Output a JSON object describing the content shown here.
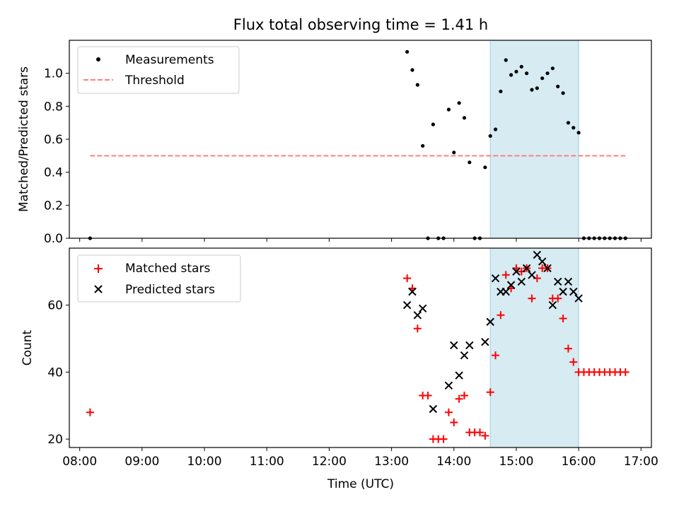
{
  "figure": {
    "title": "Flux total observing time = 1.41 h",
    "xlabel": "Time (UTC)"
  },
  "colors": {
    "highlight": "#add8e6",
    "threshold": "#ff7f7f",
    "measurement": "#000000",
    "matched": "#ff0000",
    "predicted": "#000000"
  },
  "chart_data": [
    {
      "type": "scatter",
      "title": "Flux total observing time = 1.41 h",
      "ylabel": "Matched/Predicted stars",
      "xlim": [
        "07:50",
        "17:10"
      ],
      "ylim": [
        0,
        1.2
      ],
      "y_ticks": [
        0.0,
        0.2,
        0.4,
        0.6,
        0.8,
        1.0
      ],
      "y_tick_labels": [
        "0.0",
        "0.2",
        "0.4",
        "0.6",
        "0.8",
        "1.0"
      ],
      "highlight_span": [
        "14:35",
        "16:00"
      ],
      "legend_position": "top-left",
      "legend": [
        "Measurements",
        "Threshold"
      ],
      "threshold": {
        "name": "Threshold",
        "y": 0.5,
        "x": [
          "08:10",
          "16:45"
        ]
      },
      "series": [
        {
          "name": "Measurements",
          "x": [
            "08:10",
            "13:15",
            "13:20",
            "13:25",
            "13:30",
            "13:35",
            "13:40",
            "13:45",
            "13:50",
            "13:55",
            "14:00",
            "14:05",
            "14:10",
            "14:15",
            "14:20",
            "14:25",
            "14:30",
            "14:35",
            "14:40",
            "14:45",
            "14:50",
            "14:55",
            "15:00",
            "15:05",
            "15:10",
            "15:15",
            "15:20",
            "15:25",
            "15:30",
            "15:35",
            "15:40",
            "15:45",
            "15:50",
            "15:55",
            "16:00",
            "16:05",
            "16:10",
            "16:15",
            "16:20",
            "16:25",
            "16:30",
            "16:35",
            "16:40",
            "16:45"
          ],
          "y": [
            0.0,
            1.13,
            1.02,
            0.93,
            0.56,
            0.0,
            0.69,
            0.0,
            0.0,
            0.78,
            0.52,
            0.82,
            0.73,
            0.46,
            0.0,
            0.0,
            0.43,
            0.62,
            0.66,
            0.89,
            1.08,
            0.99,
            1.01,
            1.04,
            1.0,
            0.9,
            0.91,
            0.97,
            1.0,
            1.03,
            0.92,
            0.88,
            0.7,
            0.67,
            0.64,
            0.0,
            0.0,
            0.0,
            0.0,
            0.0,
            0.0,
            0.0,
            0.0,
            0.0
          ]
        }
      ]
    },
    {
      "type": "scatter",
      "xlabel": "Time (UTC)",
      "ylabel": "Count",
      "xlim": [
        "07:50",
        "17:10"
      ],
      "ylim": [
        17.5,
        77
      ],
      "y_ticks": [
        20,
        40,
        60
      ],
      "y_tick_labels": [
        "20",
        "40",
        "60"
      ],
      "x_ticks": [
        "08:00",
        "09:00",
        "10:00",
        "11:00",
        "12:00",
        "13:00",
        "14:00",
        "15:00",
        "16:00",
        "17:00"
      ],
      "highlight_span": [
        "14:35",
        "16:00"
      ],
      "legend_position": "top-left",
      "legend": [
        "Matched stars",
        "Predicted stars"
      ],
      "series": [
        {
          "name": "Matched stars",
          "marker": "plus",
          "x": [
            "08:10",
            "13:15",
            "13:20",
            "13:25",
            "13:30",
            "13:35",
            "13:40",
            "13:45",
            "13:50",
            "13:55",
            "14:00",
            "14:05",
            "14:10",
            "14:15",
            "14:20",
            "14:25",
            "14:30",
            "14:35",
            "14:40",
            "14:45",
            "14:50",
            "14:55",
            "15:00",
            "15:05",
            "15:10",
            "15:15",
            "15:20",
            "15:25",
            "15:30",
            "15:35",
            "15:40",
            "15:45",
            "15:50",
            "15:55",
            "16:00",
            "16:05",
            "16:10",
            "16:15",
            "16:20",
            "16:25",
            "16:30",
            "16:35",
            "16:40",
            "16:45"
          ],
          "y": [
            28,
            68,
            65,
            53,
            33,
            33,
            20,
            20,
            20,
            28,
            25,
            32,
            33,
            22,
            22,
            22,
            21,
            34,
            45,
            57,
            69,
            65,
            71,
            70,
            71,
            62,
            68,
            71,
            71,
            62,
            62,
            56,
            47,
            43,
            40,
            40,
            40,
            40,
            40,
            40,
            40,
            40,
            40,
            40
          ]
        },
        {
          "name": "Predicted stars",
          "marker": "x",
          "x": [
            "13:15",
            "13:20",
            "13:25",
            "13:30",
            "13:40",
            "13:55",
            "14:00",
            "14:05",
            "14:10",
            "14:15",
            "14:30",
            "14:35",
            "14:40",
            "14:45",
            "14:50",
            "14:55",
            "15:00",
            "15:05",
            "15:10",
            "15:15",
            "15:20",
            "15:25",
            "15:30",
            "15:35",
            "15:40",
            "15:45",
            "15:50",
            "15:55",
            "16:00"
          ],
          "y": [
            60,
            64,
            57,
            59,
            29,
            36,
            48,
            39,
            45,
            48,
            49,
            55,
            68,
            64,
            64,
            66,
            70,
            67,
            71,
            69,
            75,
            73,
            71,
            60,
            67,
            64,
            67,
            64,
            62
          ]
        }
      ]
    }
  ]
}
